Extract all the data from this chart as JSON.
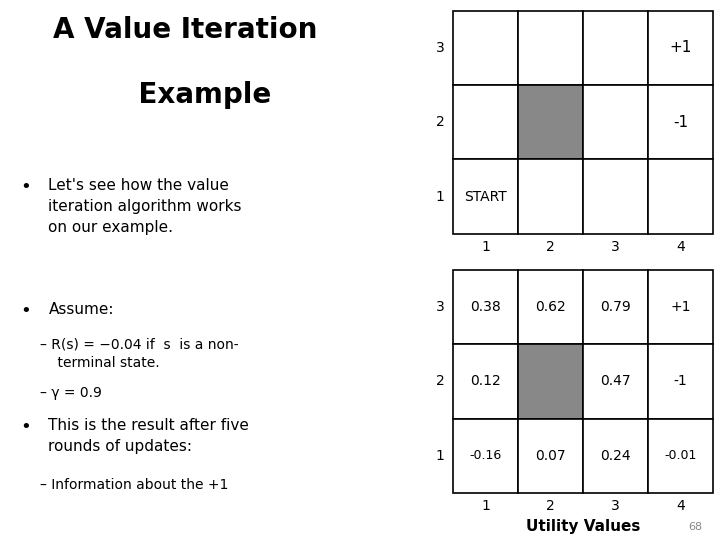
{
  "title_line1": "A Value Iteration",
  "title_line2": "    Example",
  "title_fontsize": 20,
  "top_grid": {
    "rows": 3,
    "cols": 4,
    "row_labels": [
      "3",
      "2",
      "1"
    ],
    "col_labels": [
      "1",
      "2",
      "3",
      "4"
    ],
    "blocked_cell": [
      1,
      1
    ],
    "blocked_color": "#888888",
    "cell_texts": {
      "0,3": "+1",
      "1,3": "-1",
      "2,0": "START"
    },
    "border_color": "#000000",
    "bg_color": "#ffffff"
  },
  "bottom_grid": {
    "rows": 3,
    "cols": 4,
    "row_labels": [
      "3",
      "2",
      "1"
    ],
    "col_labels": [
      "1",
      "2",
      "3",
      "4"
    ],
    "blocked_cell": [
      1,
      1
    ],
    "blocked_color": "#888888",
    "cell_texts": {
      "0,0": "0.38",
      "0,1": "0.62",
      "0,2": "0.79",
      "0,3": "+1",
      "1,0": "0.12",
      "1,2": "0.47",
      "1,3": "-1",
      "2,0": "-0.16",
      "2,1": "0.07",
      "2,2": "0.24",
      "2,3": "-0.01"
    },
    "xlabel": "Utility Values",
    "border_color": "#000000",
    "bg_color": "#ffffff"
  },
  "page_number": "68",
  "bg_color": "#ffffff"
}
